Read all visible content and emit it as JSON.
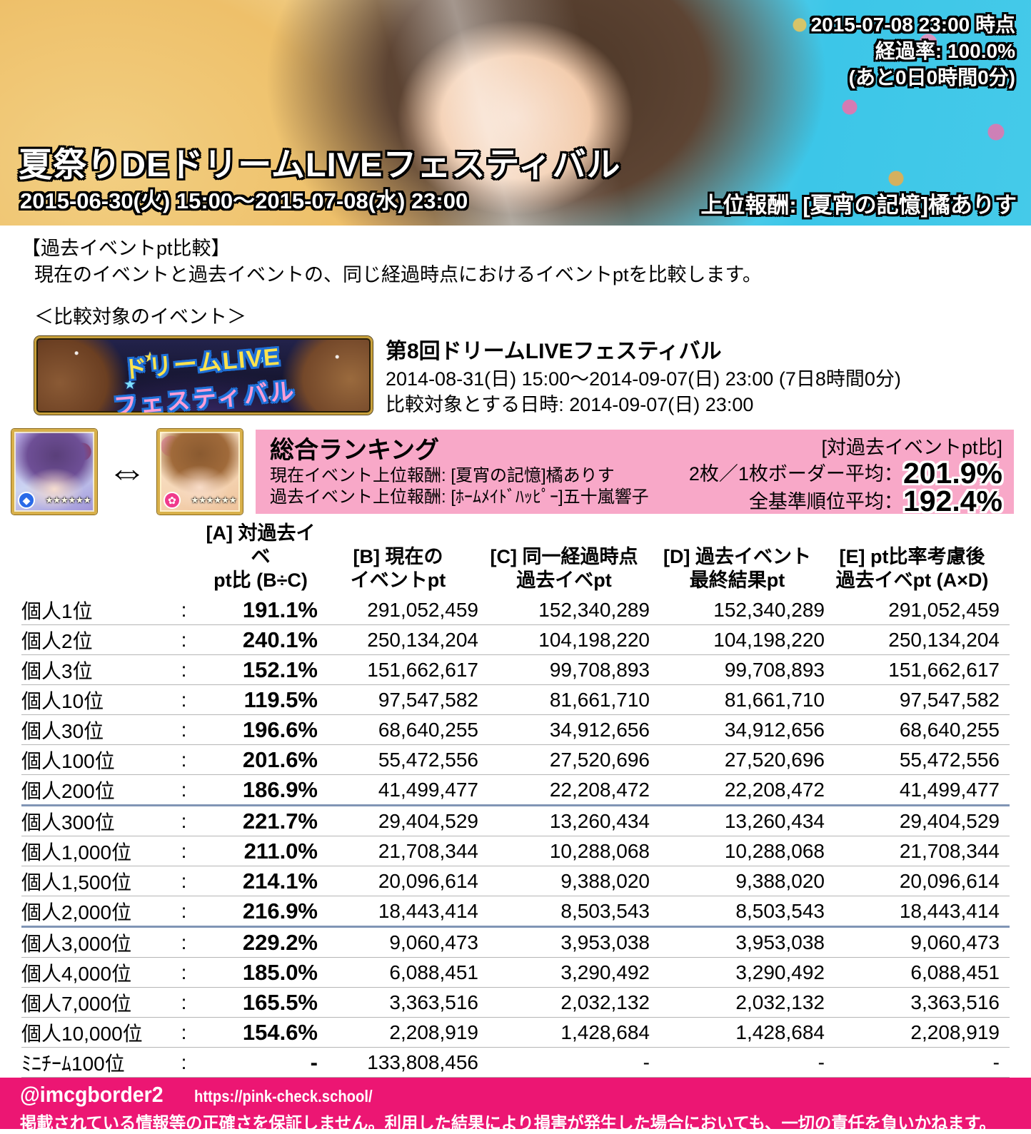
{
  "header": {
    "status_time": "2015-07-08 23:00 時点",
    "status_progress": "経過率: 100.0%",
    "status_remaining": "(あと0日0時間0分)",
    "title": "夏祭りDEドリームLIVEフェスティバル",
    "period": "2015-06-30(火) 15:00〜2015-07-08(水) 23:00",
    "reward": "上位報酬: [夏宵の記憶]橘ありす"
  },
  "intro": {
    "section_title": "【過去イベントpt比較】",
    "description": "現在のイベントと過去イベントの、同じ経過時点におけるイベントptを比較します。",
    "target_label": "＜比較対象のイベント＞"
  },
  "past_event": {
    "banner_line1": "ドリームLIVE",
    "banner_line2": "フェスティバル",
    "name": "第8回ドリームLIVEフェスティバル",
    "period": "2014-08-31(日) 15:00〜2014-09-07(日) 23:00 (7日8時間0分)",
    "compare_time": "比較対象とする日時: 2014-09-07(日) 23:00"
  },
  "summary": {
    "swap_icon": "⇔",
    "cards": [
      {
        "badge": "◆",
        "stars": "★★★★★★"
      },
      {
        "badge": "✿",
        "stars": "★★★★★★"
      }
    ],
    "title": "総合ランキング",
    "current_reward": "現在イベント上位報酬: [夏宵の記憶]橘ありす",
    "past_reward": "過去イベント上位報酬: [ﾎｰﾑﾒｲﾄﾞﾊｯﾋﾟｰ]五十嵐響子",
    "ratio_header": "[対過去イベントpt比]",
    "border_avg_label": "2枚／1枚ボーダー平均：",
    "border_avg_value": "201.9%",
    "all_avg_label": "全基準順位平均：",
    "all_avg_value": "192.4%"
  },
  "table": {
    "colon": ":",
    "headers": [
      {
        "line1": "[A] 対過去イベ",
        "line2": "pt比 (B÷C)"
      },
      {
        "line1": "[B] 現在の",
        "line2": "イベントpt"
      },
      {
        "line1": "[C] 同一経過時点",
        "line2": "過去イベpt"
      },
      {
        "line1": "[D] 過去イベント",
        "line2": "最終結果pt"
      },
      {
        "line1": "[E] pt比率考慮後",
        "line2": "過去イベpt (A×D)"
      }
    ],
    "rows": [
      {
        "label": "個人1位",
        "a": "191.1%",
        "b": "291,052,459",
        "c": "152,340,289",
        "d": "152,340,289",
        "e": "291,052,459",
        "divider": false
      },
      {
        "label": "個人2位",
        "a": "240.1%",
        "b": "250,134,204",
        "c": "104,198,220",
        "d": "104,198,220",
        "e": "250,134,204",
        "divider": false
      },
      {
        "label": "個人3位",
        "a": "152.1%",
        "b": "151,662,617",
        "c": "99,708,893",
        "d": "99,708,893",
        "e": "151,662,617",
        "divider": false
      },
      {
        "label": "個人10位",
        "a": "119.5%",
        "b": "97,547,582",
        "c": "81,661,710",
        "d": "81,661,710",
        "e": "97,547,582",
        "divider": false
      },
      {
        "label": "個人30位",
        "a": "196.6%",
        "b": "68,640,255",
        "c": "34,912,656",
        "d": "34,912,656",
        "e": "68,640,255",
        "divider": false
      },
      {
        "label": "個人100位",
        "a": "201.6%",
        "b": "55,472,556",
        "c": "27,520,696",
        "d": "27,520,696",
        "e": "55,472,556",
        "divider": false
      },
      {
        "label": "個人200位",
        "a": "186.9%",
        "b": "41,499,477",
        "c": "22,208,472",
        "d": "22,208,472",
        "e": "41,499,477",
        "divider": true
      },
      {
        "label": "個人300位",
        "a": "221.7%",
        "b": "29,404,529",
        "c": "13,260,434",
        "d": "13,260,434",
        "e": "29,404,529",
        "divider": false
      },
      {
        "label": "個人1,000位",
        "a": "211.0%",
        "b": "21,708,344",
        "c": "10,288,068",
        "d": "10,288,068",
        "e": "21,708,344",
        "divider": false
      },
      {
        "label": "個人1,500位",
        "a": "214.1%",
        "b": "20,096,614",
        "c": "9,388,020",
        "d": "9,388,020",
        "e": "20,096,614",
        "divider": false
      },
      {
        "label": "個人2,000位",
        "a": "216.9%",
        "b": "18,443,414",
        "c": "8,503,543",
        "d": "8,503,543",
        "e": "18,443,414",
        "divider": true
      },
      {
        "label": "個人3,000位",
        "a": "229.2%",
        "b": "9,060,473",
        "c": "3,953,038",
        "d": "3,953,038",
        "e": "9,060,473",
        "divider": false
      },
      {
        "label": "個人4,000位",
        "a": "185.0%",
        "b": "6,088,451",
        "c": "3,290,492",
        "d": "3,290,492",
        "e": "6,088,451",
        "divider": false
      },
      {
        "label": "個人7,000位",
        "a": "165.5%",
        "b": "3,363,516",
        "c": "2,032,132",
        "d": "2,032,132",
        "e": "3,363,516",
        "divider": false
      },
      {
        "label": "個人10,000位",
        "a": "154.6%",
        "b": "2,208,919",
        "c": "1,428,684",
        "d": "1,428,684",
        "e": "2,208,919",
        "divider": false
      },
      {
        "label": "ﾐﾆﾁｰﾑ100位",
        "a": "-",
        "b": "133,808,456",
        "c": "-",
        "d": "-",
        "e": "-",
        "divider": false
      }
    ]
  },
  "footer": {
    "handle": "@imcgborder2",
    "url": "https://pink-check.school/",
    "disclaimer": "掲載されている情報等の正確さを保証しません。利用した結果により損害が発生した場合においても、一切の責任を負いかねます。"
  },
  "colors": {
    "accent_pink_box": "#f8a8c8",
    "footer_magenta": "#ec1673",
    "tier_divider": "#8095b5",
    "row_divider": "#b5b5b5",
    "sky_cyan": "#3cc6e8"
  }
}
